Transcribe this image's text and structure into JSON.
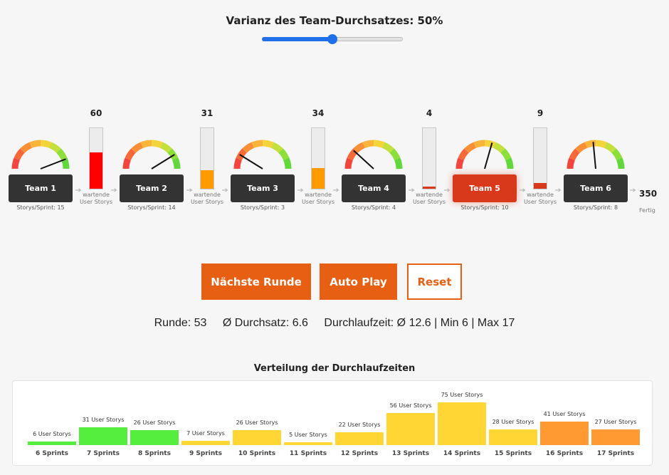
{
  "header": {
    "title": "Varianz des Team-Durchsatzes: 50%"
  },
  "slider": {
    "value_percent": 50,
    "color": "#1f6feb"
  },
  "teams": [
    {
      "name": "Team 1",
      "rate_label": "Storys/Sprint: 15",
      "active": false
    },
    {
      "name": "Team 2",
      "rate_label": "Storys/Sprint: 14",
      "active": false
    },
    {
      "name": "Team 3",
      "rate_label": "Storys/Sprint: 3",
      "active": false
    },
    {
      "name": "Team 4",
      "rate_label": "Storys/Sprint: 4",
      "active": false
    },
    {
      "name": "Team 5",
      "rate_label": "Storys/Sprint: 10",
      "active": true
    },
    {
      "name": "Team 6",
      "rate_label": "Storys/Sprint: 8",
      "active": false
    }
  ],
  "queues": [
    {
      "count": "60",
      "fill_fraction": 0.6,
      "color": "#ff0000",
      "label": "wartende User Storys"
    },
    {
      "count": "31",
      "fill_fraction": 0.31,
      "color": "#ff9a00",
      "label": "wartende User Storys"
    },
    {
      "count": "34",
      "fill_fraction": 0.34,
      "color": "#ff9a00",
      "label": "wartende User Storys"
    },
    {
      "count": "4",
      "fill_fraction": 0.04,
      "color": "#d9391b",
      "label": "wartende User Storys"
    },
    {
      "count": "9",
      "fill_fraction": 0.09,
      "color": "#d9391b",
      "label": "wartende User Storys"
    }
  ],
  "done": {
    "count": "350",
    "label": "Fertig"
  },
  "buttons": {
    "next_round": "Nächste Runde",
    "auto_play": "Auto Play",
    "reset": "Reset"
  },
  "stats": {
    "round": "Runde: 53",
    "throughput": "Ø Durchsatz: 6.6",
    "lead_time": "Durchlaufzeit: Ø 12.6 | Min 6 | Max 17"
  },
  "colors": {
    "accent": "#e65f12",
    "active_team": "#d9391b",
    "team_box": "#333333"
  },
  "chart_data": {
    "type": "bar",
    "title": "Verteilung der Durchlaufzeiten",
    "categories": [
      "6 Sprints",
      "7 Sprints",
      "8 Sprints",
      "9 Sprints",
      "10 Sprints",
      "11 Sprints",
      "12 Sprints",
      "13 Sprints",
      "14 Sprints",
      "15 Sprints",
      "16 Sprints",
      "17 Sprints"
    ],
    "values": [
      6,
      31,
      26,
      7,
      26,
      5,
      22,
      56,
      75,
      28,
      41,
      27
    ],
    "data_labels": [
      "6 User Storys",
      "31 User Storys",
      "26 User Storys",
      "7 User Storys",
      "26 User Storys",
      "5 User Storys",
      "22 User Storys",
      "56 User Storys",
      "75 User Storys",
      "28 User Storys",
      "41 User Storys",
      "27 User Storys"
    ],
    "bar_colors": [
      "#55ee3e",
      "#55ee3e",
      "#55ee3e",
      "#ffd634",
      "#ffd634",
      "#ffd634",
      "#ffd634",
      "#ffd634",
      "#ffd634",
      "#ffd634",
      "#ff9a33",
      "#ff9a33"
    ],
    "ylim": [
      0,
      75
    ],
    "grid": false,
    "legend": "none"
  }
}
